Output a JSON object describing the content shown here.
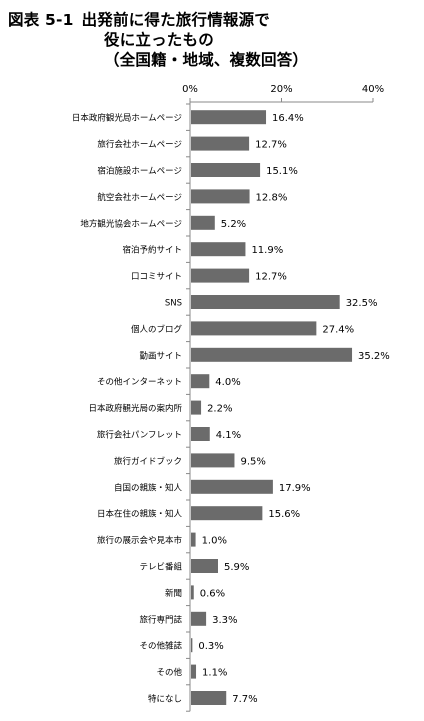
{
  "title": {
    "figure": "図表 5-1",
    "line1": "出発前に得た旅行情報源で",
    "line2": "役に立ったもの",
    "line3": "（全国籍・地域、複数回答）"
  },
  "chart_data": {
    "type": "bar",
    "orientation": "horizontal",
    "title": "出発前に得た旅行情報源で役に立ったもの（全国籍・地域、複数回答）",
    "xlim": [
      0,
      40
    ],
    "ticks": [
      "0%",
      "20%",
      "40%"
    ],
    "tick_values": [
      0,
      20,
      40
    ],
    "bar_color": "#6b6b6b",
    "categories": [
      "日本政府観光局ホームページ",
      "旅行会社ホームページ",
      "宿泊施設ホームページ",
      "航空会社ホームページ",
      "地方観光協会ホームページ",
      "宿泊予約サイト",
      "口コミサイト",
      "SNS",
      "個人のブログ",
      "動画サイト",
      "その他インターネット",
      "日本政府観光局の案内所",
      "旅行会社パンフレット",
      "旅行ガイドブック",
      "自国の親族・知人",
      "日本在住の親族・知人",
      "旅行の展示会や見本市",
      "テレビ番組",
      "新聞",
      "旅行専門誌",
      "その他雑誌",
      "その他",
      "特になし"
    ],
    "values": [
      16.4,
      12.7,
      15.1,
      12.8,
      5.2,
      11.9,
      12.7,
      32.5,
      27.4,
      35.2,
      4.0,
      2.2,
      4.1,
      9.5,
      17.9,
      15.6,
      1.0,
      5.9,
      0.6,
      3.3,
      0.3,
      1.1,
      7.7
    ],
    "value_labels": [
      "16.4%",
      "12.7%",
      "15.1%",
      "12.8%",
      "5.2%",
      "11.9%",
      "12.7%",
      "32.5%",
      "27.4%",
      "35.2%",
      "4.0%",
      "2.2%",
      "4.1%",
      "9.5%",
      "17.9%",
      "15.6%",
      "1.0%",
      "5.9%",
      "0.6%",
      "3.3%",
      "0.3%",
      "1.1%",
      "7.7%"
    ]
  }
}
